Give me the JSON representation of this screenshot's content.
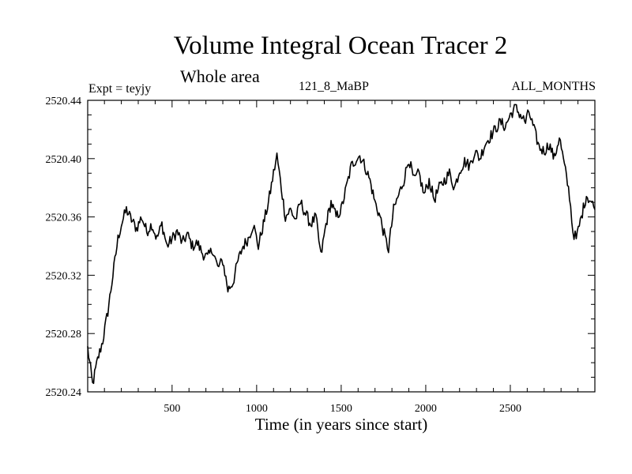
{
  "chart_data": {
    "type": "line",
    "title": "Volume Integral Ocean Tracer 2",
    "subtitle": "Whole area",
    "experiment_label": "Expt = teyjy",
    "run_label": "121_8_MaBP",
    "months_label": "ALL_MONTHS",
    "xlabel": "Time (in years since start)",
    "ylabel": "",
    "xlim": [
      1,
      3000
    ],
    "ylim": [
      2520.24,
      2520.44
    ],
    "x_ticks": [
      500,
      1000,
      1500,
      2000,
      2500
    ],
    "x_tick_labels": [
      "500",
      "1000",
      "1500",
      "2000",
      "2500"
    ],
    "y_ticks": [
      2520.24,
      2520.28,
      2520.32,
      2520.36,
      2520.4,
      2520.44
    ],
    "y_tick_labels": [
      "2520.24",
      "2520.28",
      "2520.32",
      "2520.36",
      "2520.40",
      "2520.44"
    ],
    "grid": false,
    "series": [
      {
        "name": "Volume Integral Ocean Tracer 2",
        "color": "#000000",
        "x": [
          1,
          30,
          60,
          90,
          120,
          150,
          180,
          200,
          230,
          260,
          290,
          320,
          350,
          380,
          410,
          440,
          470,
          500,
          530,
          560,
          590,
          620,
          650,
          680,
          710,
          740,
          770,
          800,
          830,
          860,
          890,
          920,
          950,
          980,
          1010,
          1040,
          1070,
          1100,
          1120,
          1140,
          1170,
          1200,
          1230,
          1260,
          1290,
          1320,
          1350,
          1380,
          1410,
          1440,
          1470,
          1500,
          1530,
          1560,
          1590,
          1610,
          1640,
          1670,
          1700,
          1730,
          1760,
          1780,
          1810,
          1840,
          1870,
          1900,
          1930,
          1960,
          1990,
          2020,
          2050,
          2080,
          2110,
          2140,
          2170,
          2200,
          2230,
          2260,
          2290,
          2320,
          2350,
          2380,
          2410,
          2440,
          2470,
          2500,
          2530,
          2560,
          2590,
          2610,
          2640,
          2670,
          2700,
          2730,
          2760,
          2790,
          2820,
          2850,
          2870,
          2890,
          2920,
          2950,
          2980,
          3000
        ],
        "values": [
          2520.27,
          2520.245,
          2520.262,
          2520.275,
          2520.295,
          2520.32,
          2520.345,
          2520.355,
          2520.365,
          2520.358,
          2520.352,
          2520.36,
          2520.35,
          2520.355,
          2520.345,
          2520.355,
          2520.34,
          2520.345,
          2520.35,
          2520.342,
          2520.348,
          2520.34,
          2520.342,
          2520.335,
          2520.332,
          2520.338,
          2520.325,
          2520.33,
          2520.31,
          2520.315,
          2520.33,
          2520.34,
          2520.345,
          2520.355,
          2520.34,
          2520.355,
          2520.37,
          2520.39,
          2520.402,
          2520.385,
          2520.36,
          2520.365,
          2520.358,
          2520.37,
          2520.362,
          2520.355,
          2520.36,
          2520.333,
          2520.355,
          2520.37,
          2520.36,
          2520.365,
          2520.38,
          2520.395,
          2520.4,
          2520.402,
          2520.395,
          2520.385,
          2520.37,
          2520.36,
          2520.345,
          2520.338,
          2520.365,
          2520.375,
          2520.385,
          2520.4,
          2520.385,
          2520.39,
          2520.375,
          2520.385,
          2520.372,
          2520.38,
          2520.385,
          2520.39,
          2520.38,
          2520.392,
          2520.398,
          2520.395,
          2520.405,
          2520.4,
          2520.41,
          2520.415,
          2520.42,
          2520.425,
          2520.422,
          2520.43,
          2520.435,
          2520.43,
          2520.425,
          2520.432,
          2520.42,
          2520.408,
          2520.405,
          2520.41,
          2520.4,
          2520.415,
          2520.395,
          2520.375,
          2520.35,
          2520.345,
          2520.36,
          2520.375,
          2520.37,
          2520.365
        ]
      }
    ]
  }
}
